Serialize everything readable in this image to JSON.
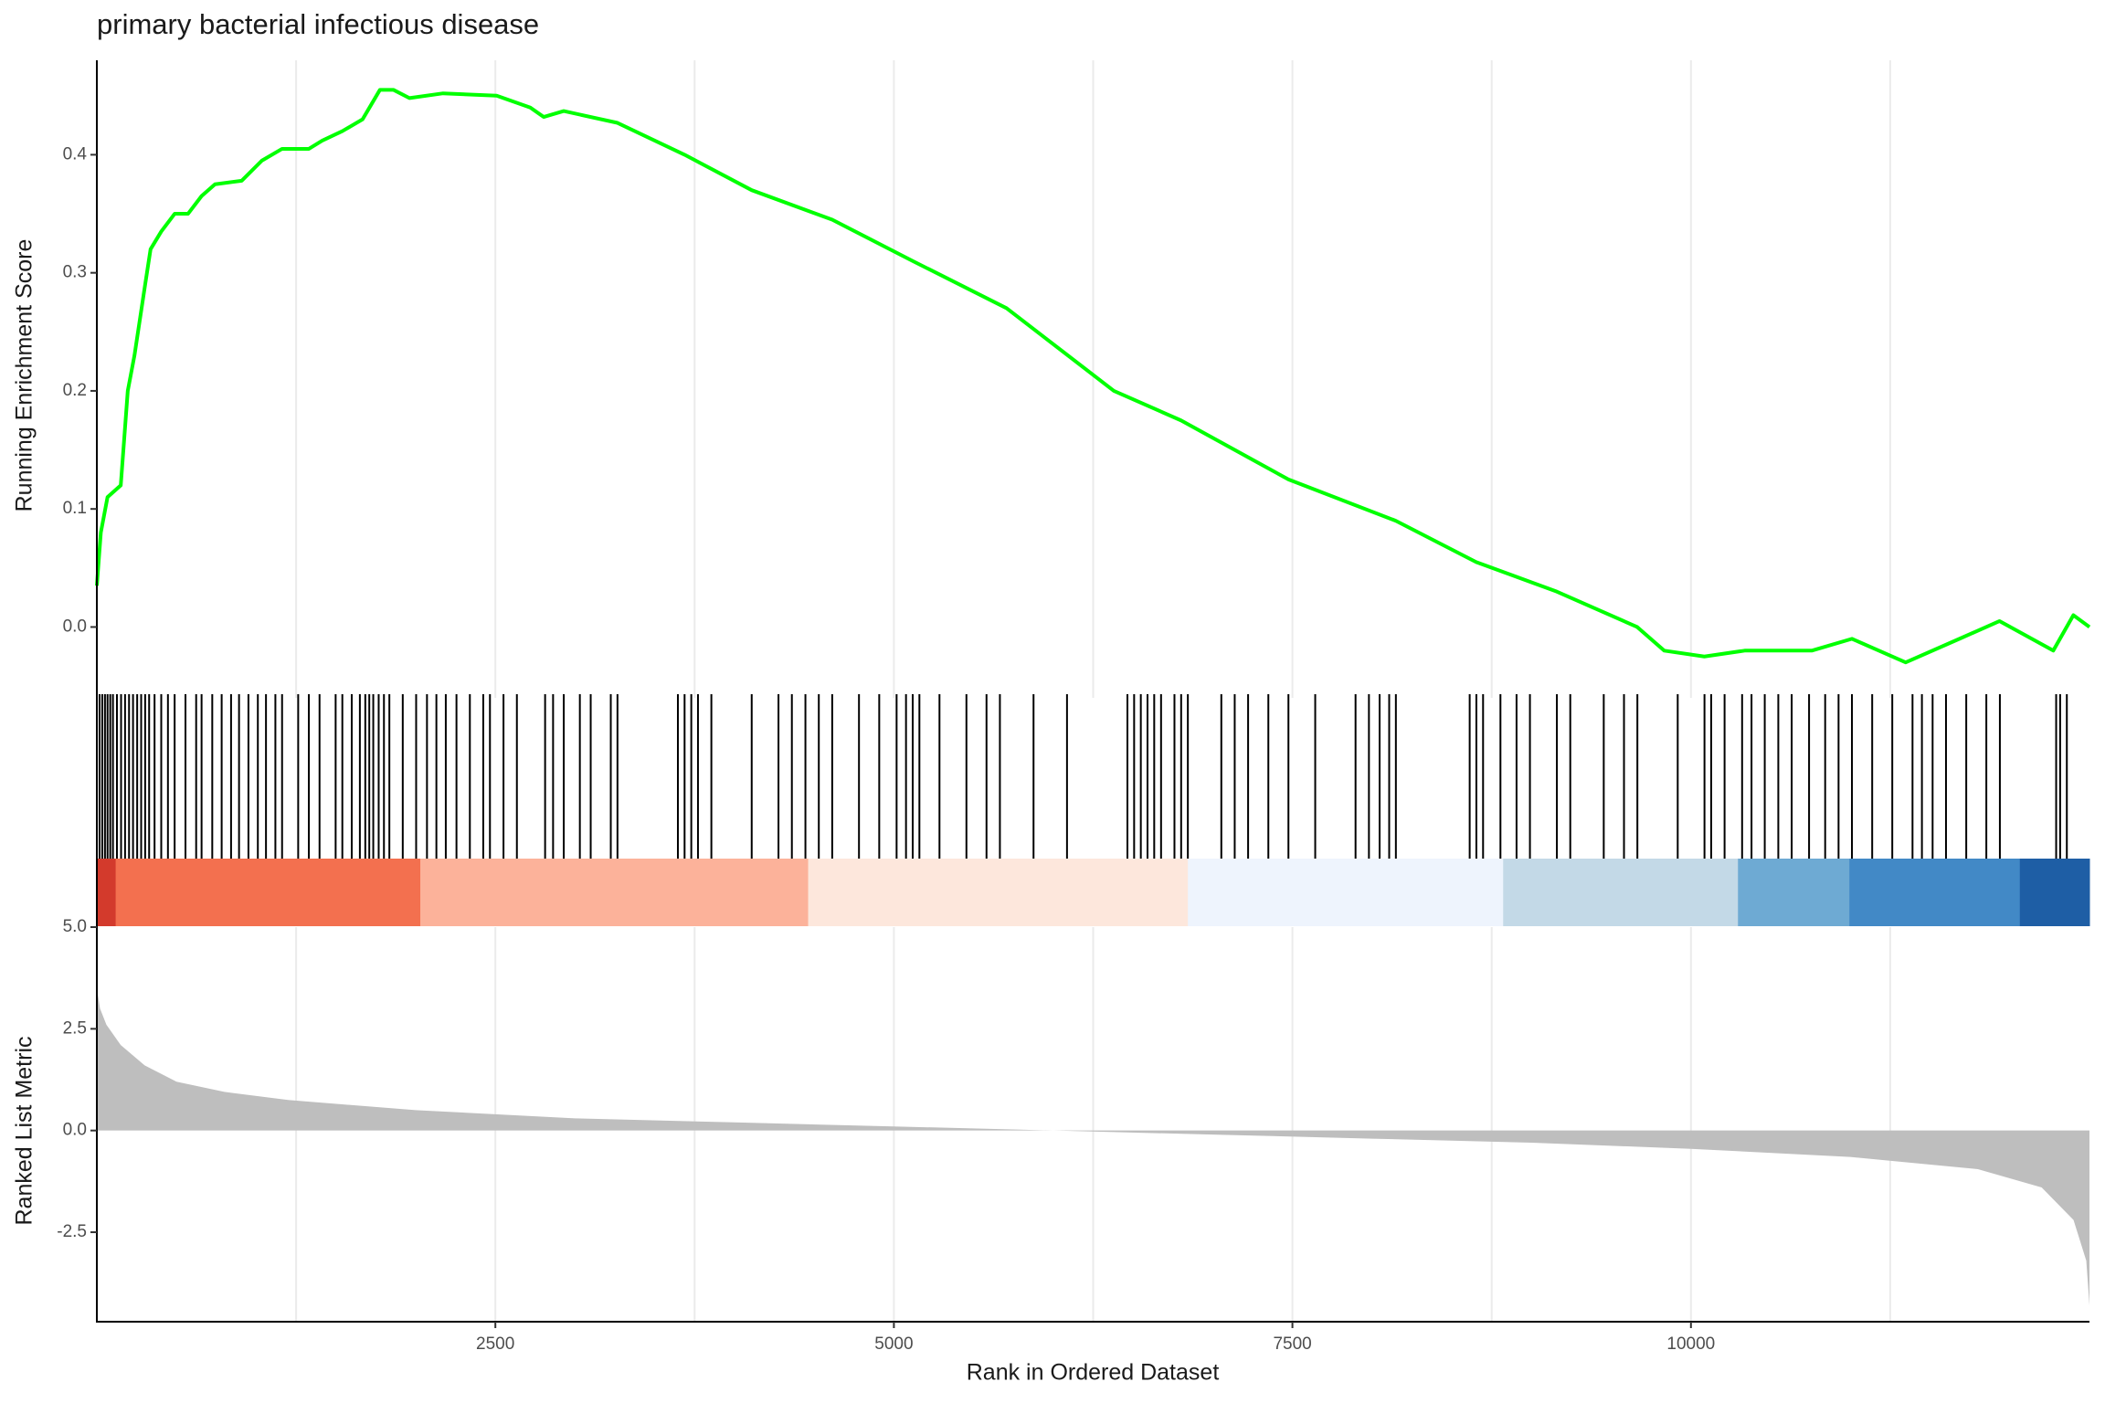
{
  "chart_data": [
    {
      "type": "line",
      "title": "primary bacterial infectious disease",
      "ylabel": "Running Enrichment Score",
      "color": "#00ff00",
      "grid": true,
      "xlim": [
        0,
        12500
      ],
      "ylim": [
        -0.06,
        0.48
      ],
      "yticks": [
        {
          "value": 0,
          "label": "0.0"
        },
        {
          "value": 0.1,
          "label": "0.1"
        },
        {
          "value": 0.2,
          "label": "0.2"
        },
        {
          "value": 0.3,
          "label": "0.3"
        },
        {
          "value": 0.4,
          "label": "0.4"
        }
      ],
      "x": [
        0,
        25,
        67,
        150,
        194,
        236,
        303,
        337,
        404,
        488,
        572,
        657,
        741,
        909,
        1035,
        1162,
        1330,
        1414,
        1540,
        1667,
        1776,
        1860,
        1961,
        2172,
        2508,
        2719,
        2803,
        2929,
        3266,
        3687,
        4108,
        4613,
        5118,
        5707,
        6380,
        6801,
        7475,
        8148,
        8653,
        9158,
        9663,
        9832,
        10084,
        10337,
        10758,
        11010,
        11347,
        11684,
        11936,
        12273,
        12399,
        12500
      ],
      "values": [
        0.035,
        0.08,
        0.11,
        0.12,
        0.2,
        0.23,
        0.29,
        0.32,
        0.335,
        0.35,
        0.35,
        0.365,
        0.375,
        0.378,
        0.395,
        0.405,
        0.405,
        0.412,
        0.42,
        0.43,
        0.455,
        0.455,
        0.448,
        0.452,
        0.45,
        0.44,
        0.432,
        0.437,
        0.427,
        0.4,
        0.37,
        0.345,
        0.31,
        0.27,
        0.2,
        0.175,
        0.125,
        0.09,
        0.055,
        0.03,
        0.0,
        -0.02,
        -0.025,
        -0.02,
        -0.02,
        -0.01,
        -0.03,
        -0.01,
        0.005,
        -0.02,
        0.01,
        0.0
      ]
    },
    {
      "type": "rug",
      "color": "#000000",
      "xlim": [
        0,
        12500
      ],
      "values": [
        17,
        34,
        51,
        67,
        84,
        101,
        126,
        152,
        177,
        202,
        227,
        253,
        278,
        303,
        328,
        362,
        404,
        446,
        488,
        556,
        623,
        657,
        724,
        783,
        842,
        892,
        951,
        1010,
        1061,
        1120,
        1162,
        1263,
        1330,
        1397,
        1498,
        1540,
        1599,
        1650,
        1684,
        1709,
        1734,
        1768,
        1801,
        1835,
        1919,
        2003,
        2071,
        2130,
        2189,
        2256,
        2340,
        2424,
        2466,
        2551,
        2635,
        2812,
        2862,
        2929,
        3030,
        3098,
        3224,
        3266,
        3645,
        3687,
        3729,
        3771,
        3855,
        4108,
        4276,
        4360,
        4445,
        4529,
        4613,
        4781,
        4908,
        5017,
        5076,
        5118,
        5160,
        5286,
        5455,
        5581,
        5665,
        5876,
        6086,
        6465,
        6507,
        6549,
        6591,
        6633,
        6676,
        6760,
        6802,
        6844,
        7054,
        7138,
        7222,
        7349,
        7475,
        7643,
        7896,
        7980,
        8047,
        8107,
        8149,
        8612,
        8654,
        8696,
        8805,
        8906,
        8990,
        9159,
        9243,
        9453,
        9580,
        9664,
        9917,
        10085,
        10127,
        10211,
        10321,
        10380,
        10463,
        10548,
        10632,
        10741,
        10842,
        10926,
        11010,
        11137,
        11263,
        11390,
        11449,
        11516,
        11600,
        11727,
        11853,
        11938,
        12291,
        12316,
        12358
      ]
    },
    {
      "type": "band",
      "xlim": [
        0,
        12500
      ],
      "bins": [
        0,
        118,
        2029,
        4462,
        6844,
        8822,
        10295,
        10994,
        12063,
        12500
      ],
      "colors": [
        "#d33a2c",
        "#f3704f",
        "#fcb29a",
        "#fde7dc",
        "#eef4fd",
        "#c3d9e7",
        "#6eaad3",
        "#4289c6",
        "#1e5ea5"
      ]
    },
    {
      "type": "area",
      "ylabel": "Ranked List Metric",
      "xlabel": "Rank in Ordered Dataset",
      "color": "#bebebe",
      "grid": true,
      "xlim": [
        0,
        12500
      ],
      "ylim": [
        -4.7,
        5.0
      ],
      "xticks": [
        2500,
        5000,
        7500,
        10000
      ],
      "xminor": [
        1250,
        3750,
        6250,
        8750,
        11250
      ],
      "yticks": [
        {
          "value": -2.5,
          "label": "-2.5"
        },
        {
          "value": 0,
          "label": "0.0"
        },
        {
          "value": 2.5,
          "label": "2.5"
        },
        {
          "value": 5.0,
          "label": "5.0"
        }
      ],
      "x": [
        0,
        20,
        60,
        150,
        300,
        500,
        800,
        1200,
        2000,
        3000,
        4000,
        5000,
        5800,
        6000,
        7000,
        8000,
        9000,
        10000,
        11000,
        11800,
        12200,
        12400,
        12480,
        12500
      ],
      "values": [
        3.5,
        3.0,
        2.6,
        2.1,
        1.6,
        1.2,
        0.95,
        0.75,
        0.5,
        0.3,
        0.2,
        0.1,
        0.02,
        0,
        -0.1,
        -0.2,
        -0.3,
        -0.45,
        -0.65,
        -0.95,
        -1.4,
        -2.2,
        -3.2,
        -4.3
      ]
    }
  ]
}
